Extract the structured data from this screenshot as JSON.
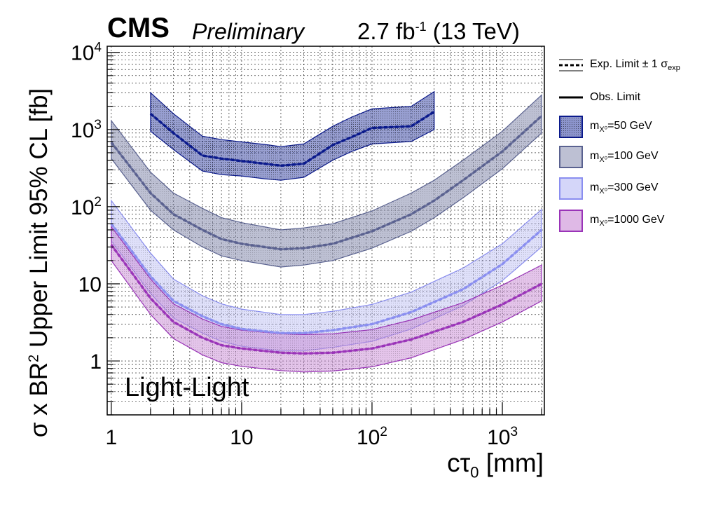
{
  "header": {
    "experiment": "CMS",
    "status": "Preliminary",
    "luminosity": "2.7 fb",
    "lumi_exp": "-1",
    "energy": "(13 TeV)"
  },
  "annotation": "Light-Light",
  "legend": {
    "exp_label": "Exp. Limit ± 1 σ",
    "exp_sub": "exp",
    "obs_label": "Obs. Limit",
    "m50": "=50 GeV",
    "m100": "=100 GeV",
    "m300": "=300 GeV",
    "m1000": "=1000 GeV",
    "mass_prefix": "m",
    "mass_sub": "X⁰"
  },
  "chart_data": {
    "type": "line",
    "title": "",
    "xlabel": "cτ0 [mm]",
    "ylabel": "σ x BR2 Upper Limit 95% CL [fb]",
    "xscale": "log",
    "yscale": "log",
    "xlim": [
      0.93,
      2100
    ],
    "ylim": [
      0.2,
      12000
    ],
    "x_ticks": [
      "1",
      "10",
      "10^2",
      "10^3"
    ],
    "y_ticks": [
      "1",
      "10",
      "10^2",
      "10^3",
      "10^4"
    ],
    "grid": true,
    "legend_position": "right-outside",
    "series": [
      {
        "name": "m_X0=50 GeV",
        "color": "#0b1a8c",
        "fill": "#1a2a9a",
        "x": [
          2,
          3,
          5,
          7,
          10,
          15,
          20,
          30,
          50,
          70,
          100,
          200,
          300
        ],
        "expected": [
          1600,
          900,
          460,
          420,
          390,
          360,
          340,
          360,
          630,
          800,
          1050,
          1100,
          1700
        ],
        "band_low": [
          950,
          550,
          290,
          260,
          250,
          230,
          220,
          240,
          400,
          520,
          650,
          700,
          1000
        ],
        "band_high": [
          3000,
          1600,
          820,
          740,
          690,
          640,
          600,
          650,
          1100,
          1450,
          1850,
          2000,
          3100
        ],
        "observed": [
          1600,
          900,
          460,
          420,
          390,
          360,
          340,
          360,
          630,
          800,
          1050,
          1100,
          1700
        ]
      },
      {
        "name": "m_X0=100 GeV",
        "color": "#5a6290",
        "fill": "#7c82a8",
        "x": [
          1,
          2,
          3,
          5,
          7,
          10,
          20,
          30,
          50,
          100,
          200,
          300,
          500,
          1000,
          2000
        ],
        "expected": [
          680,
          150,
          80,
          50,
          38,
          33,
          28,
          29,
          33,
          48,
          80,
          120,
          220,
          520,
          1500
        ],
        "band_low": [
          420,
          90,
          50,
          30,
          23,
          20,
          16.5,
          17.5,
          20,
          29,
          48,
          72,
          130,
          310,
          900
        ],
        "band_high": [
          1300,
          280,
          150,
          95,
          72,
          62,
          50,
          53,
          60,
          88,
          150,
          220,
          400,
          950,
          2800
        ],
        "observed": [
          680,
          150,
          80,
          50,
          38,
          33,
          28,
          29,
          33,
          48,
          80,
          120,
          220,
          520,
          1500
        ]
      },
      {
        "name": "m_X0=300 GeV",
        "color": "#8a8ef0",
        "fill": "#b8baf5",
        "x": [
          1,
          2,
          3,
          5,
          7,
          10,
          20,
          30,
          50,
          100,
          200,
          500,
          1000,
          2000
        ],
        "expected": [
          60,
          12.5,
          6,
          3.8,
          3.0,
          2.6,
          2.3,
          2.3,
          2.5,
          3.0,
          4.3,
          8.5,
          18,
          50
        ],
        "band_low": [
          36,
          7.5,
          3.6,
          2.3,
          1.8,
          1.55,
          1.35,
          1.35,
          1.5,
          1.8,
          2.6,
          5.2,
          11,
          30
        ],
        "band_high": [
          120,
          25,
          11.5,
          7,
          5.5,
          4.7,
          4.0,
          4.0,
          4.4,
          5.4,
          7.8,
          16,
          33,
          92
        ],
        "observed": [
          60,
          12.5,
          6,
          3.8,
          3.0,
          2.6,
          2.3,
          2.3,
          2.5,
          3.0,
          4.3,
          8.5,
          18,
          50
        ]
      },
      {
        "name": "m_X0=1000 GeV",
        "color": "#9a34b8",
        "fill": "#c98ad6",
        "x": [
          1,
          2,
          3,
          5,
          7,
          10,
          20,
          30,
          50,
          100,
          200,
          500,
          1000,
          2000
        ],
        "expected": [
          32,
          6.5,
          3.2,
          2.0,
          1.6,
          1.45,
          1.28,
          1.25,
          1.28,
          1.45,
          1.9,
          3.2,
          5.4,
          10
        ],
        "band_low": [
          20,
          4.0,
          1.95,
          1.2,
          0.95,
          0.85,
          0.75,
          0.72,
          0.74,
          0.84,
          1.1,
          1.9,
          3.2,
          6
        ],
        "band_high": [
          55,
          11.5,
          5.5,
          3.5,
          2.8,
          2.5,
          2.25,
          2.2,
          2.25,
          2.55,
          3.4,
          5.7,
          9.6,
          17.5
        ],
        "observed": [
          32,
          6.5,
          3.2,
          2.0,
          1.6,
          1.45,
          1.28,
          1.25,
          1.28,
          1.45,
          1.9,
          3.2,
          5.4,
          10
        ]
      }
    ]
  }
}
